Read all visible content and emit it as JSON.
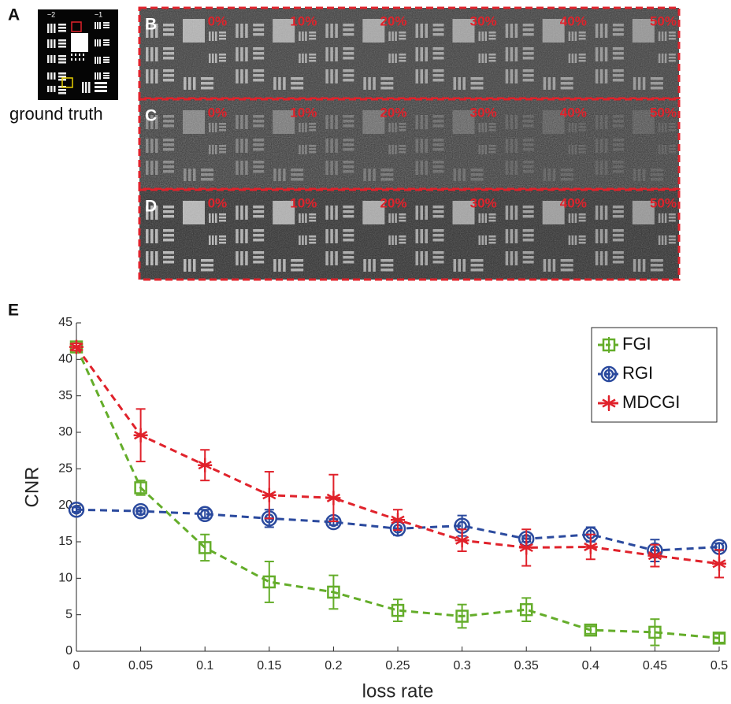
{
  "ground_truth": {
    "panel": "A",
    "label": "ground truth",
    "ticks": [
      "−2",
      "−1"
    ]
  },
  "panels": [
    {
      "label": "B",
      "subpanels": [
        "0%",
        "10%",
        "20%",
        "30%",
        "40%",
        "50%"
      ]
    },
    {
      "label": "C",
      "subpanels": [
        "0%",
        "10%",
        "20%",
        "30%",
        "40%",
        "50%"
      ]
    },
    {
      "label": "D",
      "subpanels": [
        "0%",
        "10%",
        "20%",
        "30%",
        "40%",
        "50%"
      ]
    }
  ],
  "chart_data": {
    "type": "line",
    "panel": "E",
    "x_label": "loss rate",
    "y_label": "CNR",
    "x": [
      0,
      0.05,
      0.1,
      0.15,
      0.2,
      0.25,
      0.3,
      0.35,
      0.4,
      0.45,
      0.5
    ],
    "xlim": [
      0,
      0.5
    ],
    "xticks": [
      0,
      0.05,
      0.1,
      0.15,
      0.2,
      0.25,
      0.3,
      0.35,
      0.4,
      0.45,
      0.5
    ],
    "ylim": [
      0,
      45
    ],
    "yticks": [
      0,
      5,
      10,
      15,
      20,
      25,
      30,
      35,
      40,
      45
    ],
    "legend": "top-right",
    "series": [
      {
        "name": "FGI",
        "color": "#64ad2a",
        "marker": "square",
        "values": [
          41.7,
          22.4,
          14.2,
          9.5,
          8.1,
          5.6,
          4.8,
          5.7,
          2.9,
          2.6,
          1.8
        ],
        "errors": [
          0.5,
          1.0,
          1.8,
          2.8,
          2.3,
          1.5,
          1.6,
          1.6,
          0.5,
          1.8,
          0.6
        ]
      },
      {
        "name": "RGI",
        "color": "#2b4a9e",
        "marker": "circle",
        "values": [
          19.4,
          19.2,
          18.8,
          18.2,
          17.7,
          16.8,
          17.2,
          15.4,
          16.0,
          13.8,
          14.3
        ],
        "errors": [
          0.3,
          0.4,
          0.6,
          1.2,
          0.4,
          0.9,
          1.4,
          0.4,
          1.0,
          1.5,
          0.5
        ]
      },
      {
        "name": "MDCGI",
        "color": "#e0222b",
        "marker": "asterisk",
        "values": [
          41.7,
          29.6,
          25.5,
          21.4,
          21.0,
          18.0,
          15.2,
          14.2,
          14.3,
          13.1,
          12.0
        ],
        "errors": [
          0.5,
          3.6,
          2.1,
          3.2,
          3.2,
          1.4,
          1.5,
          2.5,
          1.7,
          1.5,
          1.9
        ]
      }
    ]
  }
}
